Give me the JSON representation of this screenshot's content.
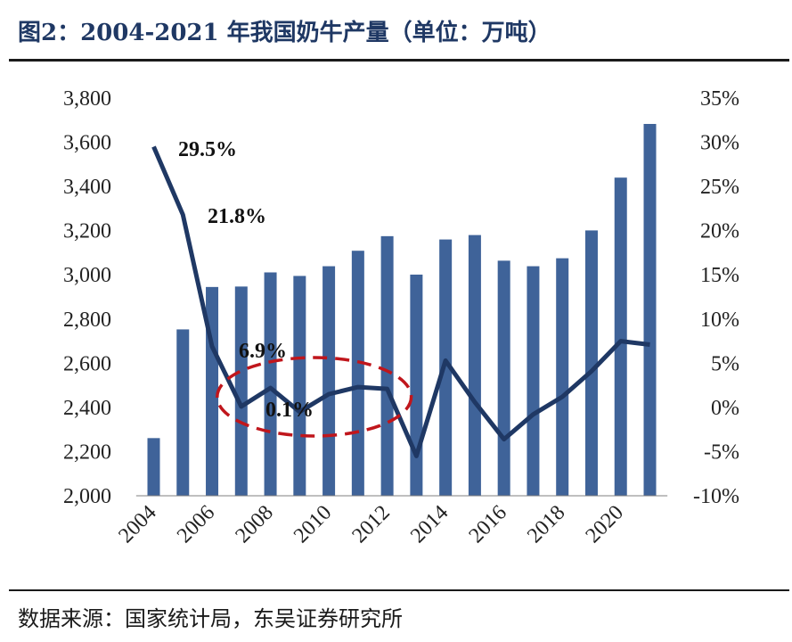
{
  "header": {
    "title": "图2：2004-2021 年我国奶牛产量（单位：万吨）"
  },
  "footer": {
    "source": "数据来源：国家统计局，东吴证券研究所"
  },
  "colors": {
    "bar": "#3f6399",
    "line": "#1f3864",
    "ellipse": "#c0161c",
    "title": "#1f3864"
  },
  "chart_data": {
    "type": "bar",
    "title": "",
    "x": [
      2004,
      2005,
      2006,
      2007,
      2008,
      2009,
      2010,
      2011,
      2012,
      2013,
      2014,
      2015,
      2016,
      2017,
      2018,
      2019,
      2020,
      2021
    ],
    "x_tick_labels": [
      "2004",
      "2006",
      "2008",
      "2010",
      "2012",
      "2014",
      "2016",
      "2018",
      "2020"
    ],
    "series": [
      {
        "type": "bar",
        "axis": "left",
        "values": [
          2261,
          2753,
          2945,
          2947,
          3011,
          2995,
          3039,
          3109,
          3175,
          3001,
          3160,
          3180,
          3064,
          3039,
          3075,
          3201,
          3440,
          3683
        ]
      },
      {
        "type": "line",
        "axis": "right",
        "values": [
          29.5,
          21.8,
          6.9,
          0.1,
          2.2,
          -0.5,
          1.5,
          2.3,
          2.1,
          -5.5,
          5.3,
          0.6,
          -3.6,
          -0.8,
          1.2,
          4.1,
          7.5,
          7.1
        ]
      }
    ],
    "y_left": {
      "lim": [
        2000,
        3800
      ],
      "ticks": [
        "2,000",
        "2,200",
        "2,400",
        "2,600",
        "2,800",
        "3,000",
        "3,200",
        "3,400",
        "3,600",
        "3,800"
      ]
    },
    "y_right": {
      "lim": [
        -10,
        35
      ],
      "ticks": [
        "-10%",
        "-5%",
        "0%",
        "5%",
        "10%",
        "15%",
        "20%",
        "25%",
        "30%",
        "35%"
      ]
    },
    "annotations": [
      {
        "text": "29.5%",
        "x": 2004
      },
      {
        "text": "21.8%",
        "x": 2005
      },
      {
        "text": "6.9%",
        "x": 2006
      },
      {
        "text": "0.1%",
        "x": 2007
      }
    ],
    "highlight_range": [
      2007,
      2012
    ],
    "legend": "none",
    "grid": false
  }
}
